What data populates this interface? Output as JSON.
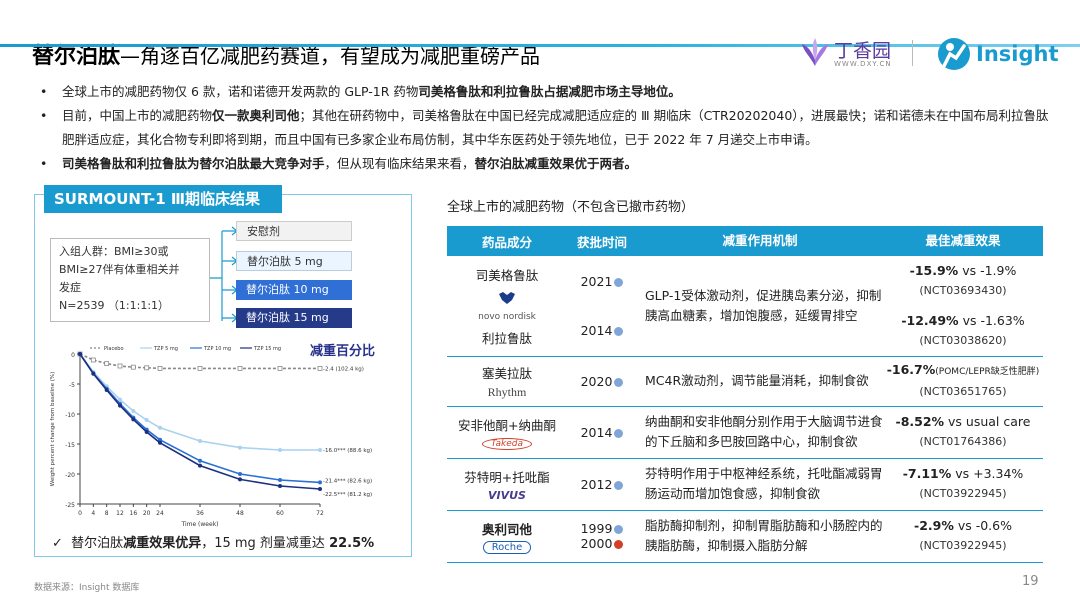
{
  "header": {
    "title": "替尔泊肽",
    "subtitle": "—角逐百亿减肥药赛道，有望成为减肥重磅产品",
    "logo_dxy_text": "丁香园",
    "logo_dxy_url": "WWW.DXY.CN",
    "logo_insight_text": "Insight",
    "accent": "#1a9bcf"
  },
  "bullets": [
    {
      "plain": "全球上市的减肥药物仅 6 款，诺和诺德开发两款的 GLP-1R 药物",
      "bold": "司美格鲁肽和利拉鲁肽占据减肥市场主导地位。",
      "tail": ""
    },
    {
      "plain": "目前，中国上市的减肥药物",
      "bold": "仅一款奥利司他",
      "tail": "；其他在研药物中，司美格鲁肽在中国已经完成减肥适应症的 Ⅲ 期临床（CTR20202040），进展最快；诺和诺德未在中国布局利拉鲁肽肥胖适应症，其化合物专利即将到期，而且中国有已多家企业布局仿制，其中华东医药处于领先地位，已于 2022 年 7 月递交上市申请。"
    },
    {
      "plain": "",
      "bold": "司美格鲁肽和利拉鲁肽为替尔泊肽最大竞争对手",
      "tail": "，但从现有临床结果来看，",
      "bold2": "替尔泊肽减重效果优于两者。"
    }
  ],
  "panel": {
    "tag": "SURMOUNT-1  Ⅲ期临床结果",
    "enroll_lines": [
      "入组人群：BMI≥30或",
      "BMI≥27伴有体重相关并",
      "发症",
      "N=2539 （1:1:1:1）"
    ],
    "arms": [
      "安慰剂",
      "替尔泊肽 5 mg",
      "替尔泊肽 10 mg",
      "替尔泊肽 15 mg"
    ],
    "chart_title": "减重百分比",
    "conclusion_check": "✓",
    "conclusion_plain": "替尔泊肽",
    "conclusion_bold": "减重效果优异",
    "conclusion_tail": "，15 mg 剂量减重达 ",
    "conclusion_value": "22.5%"
  },
  "chart_data": {
    "type": "line",
    "title": "",
    "xlabel": "Time (week)",
    "ylabel": "Weight percent change from baseline (%)",
    "x": [
      0,
      4,
      8,
      12,
      16,
      20,
      24,
      36,
      48,
      60,
      72
    ],
    "xticks": [
      "0",
      "4",
      "8",
      "12",
      "16",
      "20",
      "24",
      "36",
      "48",
      "60",
      "72"
    ],
    "yticks": [
      "0",
      "-5",
      "-10",
      "-15",
      "-20",
      "-25"
    ],
    "ylim": [
      -25,
      0
    ],
    "xlim": [
      0,
      72
    ],
    "series": [
      {
        "name": "Placebo",
        "color": "#888888",
        "dashed": true,
        "values": [
          0,
          -1.0,
          -1.6,
          -2.0,
          -2.2,
          -2.3,
          -2.4,
          -2.4,
          -2.4,
          -2.4,
          -2.4
        ],
        "end_label": "-2.4 (102.4 kg)"
      },
      {
        "name": "TZP 5 mg",
        "color": "#a8d2f0",
        "dashed": false,
        "values": [
          0,
          -3.0,
          -5.4,
          -7.6,
          -9.5,
          -11.0,
          -12.3,
          -14.5,
          -15.6,
          -16.0,
          -16.0
        ],
        "end_label": "-16.0*** (88.6 kg)"
      },
      {
        "name": "TZP 10 mg",
        "color": "#2a6fd6",
        "dashed": false,
        "values": [
          0,
          -3.2,
          -5.8,
          -8.3,
          -10.6,
          -12.6,
          -14.3,
          -17.8,
          -20.0,
          -21.0,
          -21.4
        ],
        "end_label": "-21.4*** (82.6 kg)"
      },
      {
        "name": "TZP 15 mg",
        "color": "#1c2f80",
        "dashed": false,
        "values": [
          0,
          -3.3,
          -6.0,
          -8.6,
          -10.9,
          -13.0,
          -14.8,
          -18.6,
          -20.9,
          -22.0,
          -22.5
        ],
        "end_label": "-22.5*** (81.2 kg)"
      }
    ]
  },
  "table": {
    "caption": "全球上市的减肥药物（不包含已撤市药物）",
    "headers": [
      "药品成分",
      "获批时间",
      "减重作用机制",
      "最佳减重效果"
    ],
    "rows": [
      {
        "name": "司美格鲁肽",
        "company": "novo nordisk",
        "year": "2021",
        "mech": "GLP-1受体激动剂，促进胰岛素分泌，抑制胰高血糖素，增加饱腹感，延缓胃排空",
        "eff_bold": "-15.9%",
        "eff_tail": " vs -1.9%",
        "nct": "(NCT03693430)"
      },
      {
        "name": "利拉鲁肽",
        "company": "",
        "year": "2014",
        "mech": "",
        "eff_bold": "-12.49%",
        "eff_tail": " vs -1.63%",
        "nct": "(NCT03038620)"
      },
      {
        "name": "塞美拉肽",
        "company": "Rhythm",
        "year": "2020",
        "mech": "MC4R激动剂，调节能量消耗，抑制食欲",
        "eff_bold": "-16.7%",
        "eff_tail": "(POMC/LEPR缺乏性肥胖)",
        "nct": "(NCT03651765)"
      },
      {
        "name": "安非他酮+纳曲酮",
        "company": "Takeda",
        "year": "2014",
        "mech": "纳曲酮和安非他酮分别作用于大脑调节进食的下丘脑和多巴胺回路中心，抑制食欲",
        "eff_bold": "-8.52%",
        "eff_tail": " vs usual care",
        "nct": "(NCT01764386)"
      },
      {
        "name": "芬特明+托吡酯",
        "company": "VIVUS",
        "year": "2012",
        "mech": "芬特明作用于中枢神经系统，托吡酯减弱胃肠运动而增加饱食感，抑制食欲",
        "eff_bold": "-7.11%",
        "eff_tail": " vs +3.34%",
        "nct": "(NCT03922945)"
      },
      {
        "name": "奥利司他",
        "company": "Roche",
        "year": "1999",
        "year2": "2000",
        "mech": "脂肪酶抑制剂，抑制胃脂肪酶和小肠腔内的胰脂肪酶，抑制摄入脂肪分解",
        "eff_bold": "-2.9%",
        "eff_tail": " vs -0.6%",
        "nct": "(NCT03922945)"
      }
    ]
  },
  "footer": {
    "source": "数据来源：Insight 数据库",
    "page": "19"
  }
}
